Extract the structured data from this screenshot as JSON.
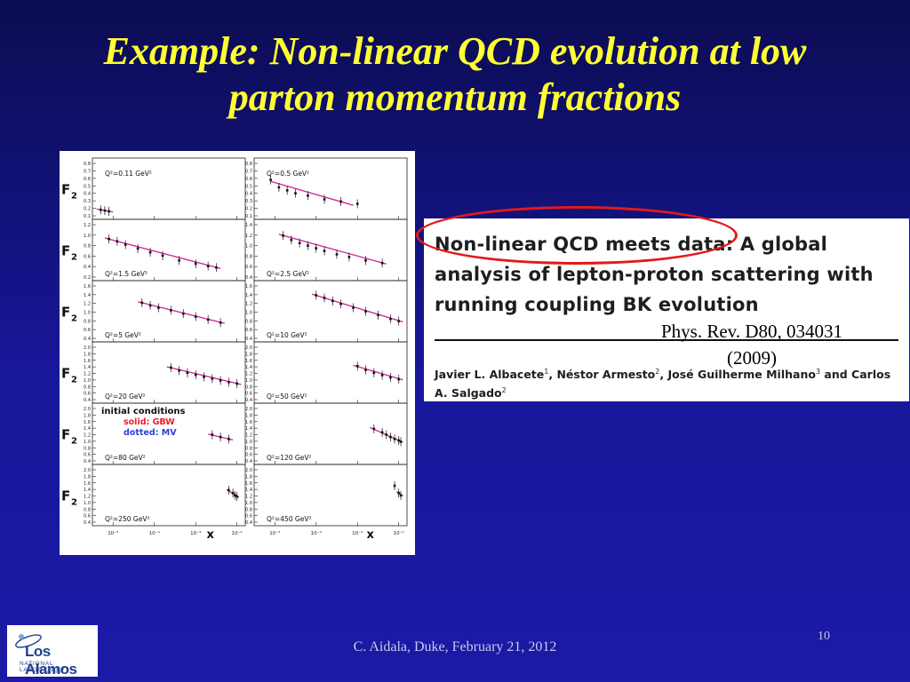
{
  "slide": {
    "title_line1": "Example: Non-linear QCD evolution at low",
    "title_line2": "parton momentum fractions",
    "footer": "C. Aidala, Duke, February 21, 2012",
    "page_number": "10",
    "colors": {
      "title": "#ffff33",
      "background": "#17179a",
      "highlight": "#e21a1a"
    }
  },
  "paper": {
    "title_line1": "Non-linear QCD meets data: A global",
    "title_line2": "analysis of lepton-proton scattering with",
    "title_line3": "running coupling BK evolution",
    "citation_line1": "Phys. Rev. D80, 034031",
    "citation_line2": "(2009)",
    "authors": [
      {
        "name": "Javier L. Albacete",
        "aff": "1"
      },
      {
        "name": "Néstor Armesto",
        "aff": "2"
      },
      {
        "name": "José Guilherme Milhano",
        "aff": "3"
      },
      {
        "name": "Carlos A. Salgado",
        "aff": "2"
      }
    ],
    "authors_sep": ", ",
    "authors_and": " and "
  },
  "logo": {
    "name": "Los Alamos",
    "subtitle": "NATIONAL LABORATORY",
    "est": "EST. 1943",
    "icon": "los-alamos-logo-icon"
  },
  "chart_data": {
    "type": "scatter",
    "ylabel": "F2",
    "xlabel": "x",
    "x_tick_labels": [
      "10⁻⁵",
      "10⁻⁴",
      "10⁻³",
      "10⁻²"
    ],
    "x_log_range": [
      -5.5,
      -1.8
    ],
    "legend": {
      "title": "initial conditions",
      "lines": [
        {
          "label": "solid: GBW",
          "color": "#e8202a"
        },
        {
          "label": "dotted: MV",
          "color": "#2a3fd8"
        }
      ],
      "placement": "left panel, fifth row"
    },
    "curve_color": "#d0209a",
    "panels": [
      {
        "q2": "Q²=0.11 GeV²",
        "ylim": [
          0.1,
          0.8
        ],
        "yticks": [
          "0.1",
          "0.2",
          "0.3",
          "0.4",
          "0.5",
          "0.6",
          "0.7",
          "0.8"
        ],
        "points": [
          [
            -5.3,
            0.18
          ],
          [
            -5.2,
            0.17
          ],
          [
            -5.1,
            0.16
          ]
        ],
        "curve": [
          [
            -5.4,
            0.19
          ],
          [
            -5.0,
            0.15
          ]
        ]
      },
      {
        "q2": "Q²=0.5 GeV²",
        "ylim": [
          0.1,
          0.8
        ],
        "yticks": [
          "0.1",
          "0.2",
          "0.3",
          "0.4",
          "0.5",
          "0.6",
          "0.7",
          "0.8"
        ],
        "points": [
          [
            -5.1,
            0.58
          ],
          [
            -4.9,
            0.48
          ],
          [
            -4.7,
            0.44
          ],
          [
            -4.5,
            0.4
          ],
          [
            -4.2,
            0.37
          ],
          [
            -3.8,
            0.32
          ],
          [
            -3.4,
            0.29
          ],
          [
            -3.0,
            0.26
          ]
        ],
        "curve": [
          [
            -5.1,
            0.56
          ],
          [
            -3.1,
            0.24
          ]
        ]
      },
      {
        "q2": "Q²=1.5 GeV²",
        "ylim": [
          0.1,
          1.2
        ],
        "yticks": [
          "0.2",
          "0.4",
          "0.6",
          "0.8",
          "1.0",
          "1.2"
        ],
        "points": [
          [
            -5.1,
            0.9
          ],
          [
            -4.9,
            0.85
          ],
          [
            -4.7,
            0.78
          ],
          [
            -4.4,
            0.7
          ],
          [
            -4.1,
            0.62
          ],
          [
            -3.8,
            0.55
          ],
          [
            -3.4,
            0.45
          ],
          [
            -3.0,
            0.38
          ],
          [
            -2.7,
            0.33
          ],
          [
            -2.5,
            0.3
          ]
        ],
        "curve": [
          [
            -5.2,
            0.92
          ],
          [
            -2.4,
            0.28
          ]
        ]
      },
      {
        "q2": "Q²=2.5 GeV²",
        "ylim": [
          0.2,
          1.4
        ],
        "yticks": [
          "0.4",
          "0.6",
          "0.8",
          "1.0",
          "1.2",
          "1.4"
        ],
        "points": [
          [
            -4.8,
            1.15
          ],
          [
            -4.6,
            1.05
          ],
          [
            -4.4,
            0.98
          ],
          [
            -4.2,
            0.92
          ],
          [
            -4.0,
            0.86
          ],
          [
            -3.8,
            0.8
          ],
          [
            -3.5,
            0.72
          ],
          [
            -3.2,
            0.66
          ],
          [
            -2.8,
            0.58
          ],
          [
            -2.4,
            0.52
          ]
        ],
        "curve": [
          [
            -4.9,
            1.18
          ],
          [
            -2.3,
            0.5
          ]
        ]
      },
      {
        "q2": "Q²=5 GeV²",
        "ylim": [
          0.2,
          1.6
        ],
        "yticks": [
          "0.4",
          "0.6",
          "0.8",
          "1.0",
          "1.2",
          "1.4",
          "1.6"
        ],
        "points": [
          [
            -4.3,
            1.15
          ],
          [
            -4.1,
            1.08
          ],
          [
            -3.9,
            1.02
          ],
          [
            -3.6,
            0.95
          ],
          [
            -3.3,
            0.86
          ],
          [
            -3.0,
            0.78
          ],
          [
            -2.7,
            0.7
          ],
          [
            -2.4,
            0.62
          ]
        ],
        "curve": [
          [
            -4.4,
            1.18
          ],
          [
            -2.3,
            0.6
          ]
        ]
      },
      {
        "q2": "Q²=10 GeV²",
        "ylim": [
          0.2,
          1.6
        ],
        "yticks": [
          "0.4",
          "0.6",
          "0.8",
          "1.0",
          "1.2",
          "1.4",
          "1.6"
        ],
        "points": [
          [
            -4.0,
            1.35
          ],
          [
            -3.8,
            1.28
          ],
          [
            -3.6,
            1.2
          ],
          [
            -3.4,
            1.12
          ],
          [
            -3.1,
            1.02
          ],
          [
            -2.8,
            0.92
          ],
          [
            -2.5,
            0.82
          ],
          [
            -2.2,
            0.72
          ],
          [
            -2.0,
            0.66
          ]
        ],
        "curve": [
          [
            -4.1,
            1.38
          ],
          [
            -1.9,
            0.64
          ]
        ]
      },
      {
        "q2": "Q²=20 GeV²",
        "ylim": [
          0.2,
          2.0
        ],
        "yticks": [
          "0.4",
          "0.6",
          "0.8",
          "1.0",
          "1.2",
          "1.4",
          "1.6",
          "1.8",
          "2.0"
        ],
        "points": [
          [
            -3.6,
            1.3
          ],
          [
            -3.4,
            1.2
          ],
          [
            -3.2,
            1.12
          ],
          [
            -3.0,
            1.05
          ],
          [
            -2.8,
            0.98
          ],
          [
            -2.6,
            0.92
          ],
          [
            -2.4,
            0.86
          ],
          [
            -2.2,
            0.8
          ],
          [
            -2.0,
            0.75
          ]
        ],
        "curve": [
          [
            -3.7,
            1.33
          ],
          [
            -1.9,
            0.72
          ]
        ]
      },
      {
        "q2": "Q²=50 GeV²",
        "ylim": [
          0.2,
          2.0
        ],
        "yticks": [
          "0.4",
          "0.6",
          "0.8",
          "1.0",
          "1.2",
          "1.4",
          "1.6",
          "1.8",
          "2.0"
        ],
        "points": [
          [
            -3.0,
            1.35
          ],
          [
            -2.8,
            1.22
          ],
          [
            -2.6,
            1.12
          ],
          [
            -2.4,
            1.04
          ],
          [
            -2.2,
            0.96
          ],
          [
            -2.0,
            0.9
          ]
        ],
        "curve": [
          [
            -3.1,
            1.38
          ],
          [
            -1.9,
            0.88
          ]
        ]
      },
      {
        "q2": "Q²=80 GeV²",
        "ylim": [
          0.2,
          2.0
        ],
        "yticks": [
          "0.4",
          "0.6",
          "0.8",
          "1.0",
          "1.2",
          "1.4",
          "1.6",
          "1.8",
          "2.0"
        ],
        "points": [
          [
            -2.6,
            1.1
          ],
          [
            -2.4,
            1.02
          ],
          [
            -2.2,
            0.95
          ]
        ],
        "curve": [
          [
            -2.7,
            1.12
          ],
          [
            -2.1,
            0.92
          ]
        ]
      },
      {
        "q2": "Q²=120 GeV²",
        "ylim": [
          0.2,
          2.0
        ],
        "yticks": [
          "0.4",
          "0.6",
          "0.8",
          "1.0",
          "1.2",
          "1.4",
          "1.6",
          "1.8",
          "2.0"
        ],
        "points": [
          [
            -2.6,
            1.3
          ],
          [
            -2.4,
            1.18
          ],
          [
            -2.3,
            1.1
          ],
          [
            -2.2,
            1.02
          ],
          [
            -2.1,
            0.95
          ],
          [
            -2.0,
            0.9
          ],
          [
            -1.95,
            0.86
          ]
        ],
        "curve": [
          [
            -2.7,
            1.35
          ],
          [
            -1.9,
            0.84
          ]
        ]
      },
      {
        "q2": "Q²=250 GeV²",
        "ylim": [
          0.2,
          2.0
        ],
        "yticks": [
          "0.4",
          "0.6",
          "0.8",
          "1.0",
          "1.2",
          "1.4",
          "1.6",
          "1.8",
          "2.0"
        ],
        "points": [
          [
            -2.2,
            1.3
          ],
          [
            -2.1,
            1.2
          ],
          [
            -2.05,
            1.12
          ],
          [
            -2.0,
            1.08
          ]
        ],
        "curve": [
          [
            -2.25,
            1.32
          ],
          [
            -1.95,
            1.05
          ]
        ]
      },
      {
        "q2": "Q²=450 GeV²",
        "ylim": [
          0.2,
          2.0
        ],
        "yticks": [
          "0.4",
          "0.6",
          "0.8",
          "1.0",
          "1.2",
          "1.4",
          "1.6",
          "1.8",
          "2.0"
        ],
        "points": [
          [
            -2.1,
            1.45
          ],
          [
            -2.0,
            1.2
          ],
          [
            -1.95,
            1.12
          ]
        ],
        "curve": [
          [
            -2.05,
            1.25
          ],
          [
            -1.9,
            1.1
          ]
        ]
      }
    ]
  }
}
